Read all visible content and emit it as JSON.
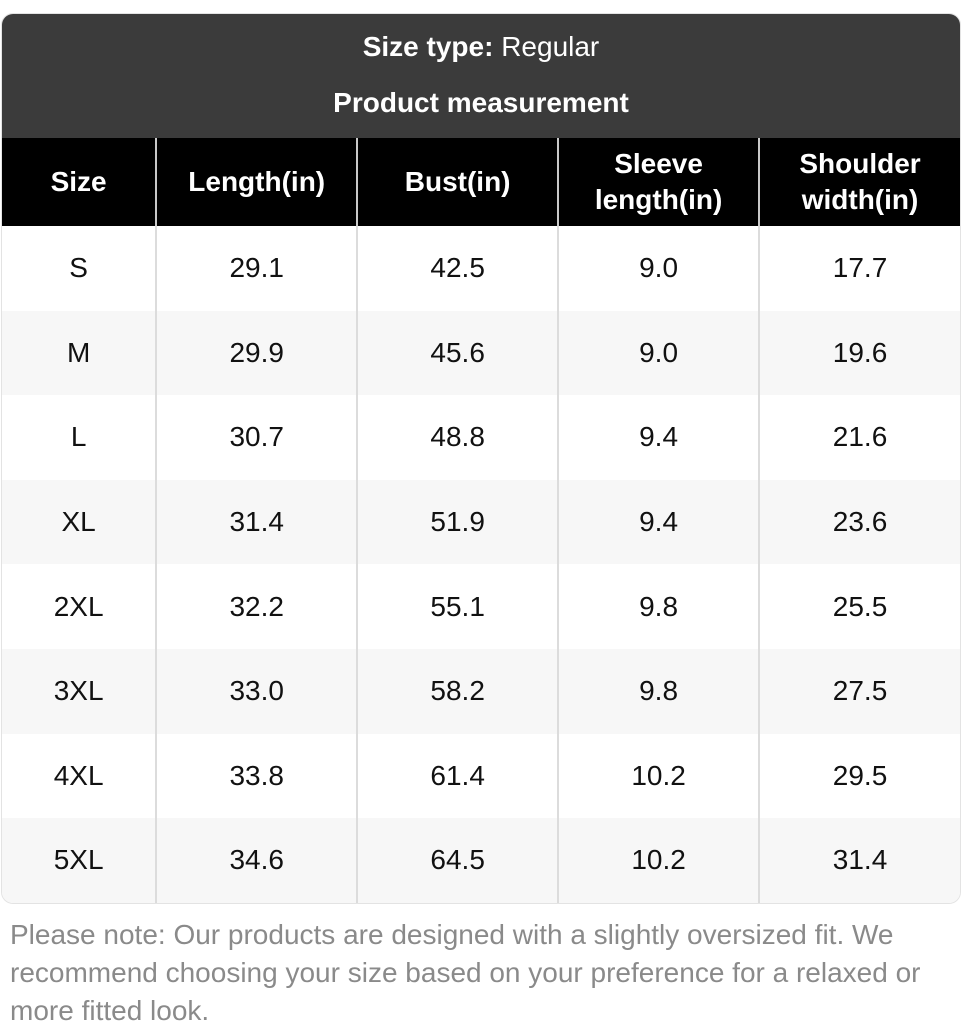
{
  "chart_data": {
    "type": "table",
    "title": "Product measurement",
    "size_type_label": "Size type:",
    "size_type_value": "Regular",
    "columns": [
      "Size",
      "Length(in)",
      "Bust(in)",
      "Sleeve length(in)",
      "Shoulder width(in)"
    ],
    "rows": [
      [
        "S",
        "29.1",
        "42.5",
        "9.0",
        "17.7"
      ],
      [
        "M",
        "29.9",
        "45.6",
        "9.0",
        "19.6"
      ],
      [
        "L",
        "30.7",
        "48.8",
        "9.4",
        "21.6"
      ],
      [
        "XL",
        "31.4",
        "51.9",
        "9.4",
        "23.6"
      ],
      [
        "2XL",
        "32.2",
        "55.1",
        "9.8",
        "25.5"
      ],
      [
        "3XL",
        "33.0",
        "58.2",
        "9.8",
        "27.5"
      ],
      [
        "4XL",
        "33.8",
        "61.4",
        "10.2",
        "29.5"
      ],
      [
        "5XL",
        "34.6",
        "64.5",
        "10.2",
        "31.4"
      ]
    ]
  },
  "note": {
    "text": "Please note: Our products are designed with a slightly oversized fit. We recommend choosing your size based on your preference for a relaxed or more fitted look."
  },
  "colors": {
    "header_band_bg": "#3b3b3b",
    "table_head_bg": "#000000",
    "table_head_text": "#ffffff",
    "row_alt_bg": "#f7f7f7",
    "separator": "#dcdcdc",
    "note_text": "#8a8a8a"
  }
}
